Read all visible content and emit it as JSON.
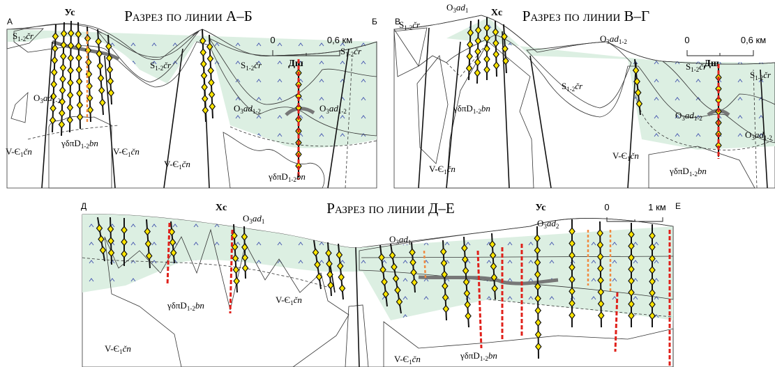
{
  "sections": [
    {
      "title": "Разрез по линии А–Б",
      "ends": [
        "А",
        "Б"
      ],
      "wells": [
        "Ус",
        "Дш"
      ],
      "scale": [
        "0",
        "0,6 км"
      ]
    },
    {
      "title": "Разрез по линии В–Г",
      "ends": [
        "В"
      ],
      "wells": [
        "Хс",
        "Дш"
      ],
      "scale": [
        "0",
        "0,6 км"
      ]
    },
    {
      "title": "Разрез по линии Д–Е",
      "ends": [
        "Д",
        "Е"
      ],
      "wells": [
        "Хс",
        "Ус"
      ],
      "scale": [
        "0",
        "1 км"
      ]
    }
  ],
  "units": {
    "s": {
      "base": "S",
      "sub1": "1-2",
      "name": "čr"
    },
    "o12": {
      "base": "O",
      "sub1": "3",
      "name": "ad",
      "sub2": "1-2"
    },
    "o1": {
      "base": "O",
      "sub1": "3",
      "name": "ad",
      "sub2": "1"
    },
    "o2": {
      "base": "O",
      "sub1": "3",
      "name": "ad",
      "sub2": "2"
    },
    "v": {
      "base": "V-Є",
      "sub1": "1",
      "name": "čn"
    },
    "g": {
      "base": "γδπD",
      "sub1": "1-2",
      "name": "bn"
    }
  }
}
